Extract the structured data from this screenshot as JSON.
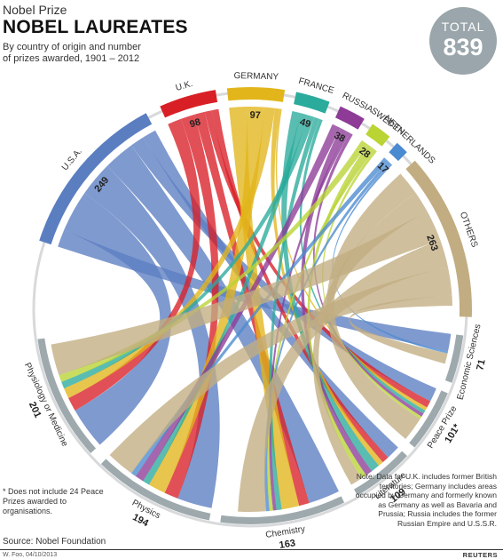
{
  "header": {
    "kicker": "Nobel Prize",
    "title": "NOBEL LAUREATES",
    "subtitle": "By country of origin and number of prizes awarded, 1901 – 2012"
  },
  "total": {
    "label": "TOTAL",
    "value": "839"
  },
  "colors": {
    "USA": "#5b7ec1",
    "UK": "#d81f26",
    "GERMANY": "#e2b51a",
    "FRANCE": "#2aab9b",
    "RUSSIA": "#8d3b97",
    "SWEDEN": "#b9d433",
    "NETHERLANDS": "#4a8ad0",
    "OTHERS": "#c2ad82",
    "category": "#9ea9ad",
    "ring": "#d7d9db"
  },
  "countries": [
    {
      "key": "USA",
      "label": "U.S.A.",
      "value": 249
    },
    {
      "key": "UK",
      "label": "U.K.",
      "value": 98
    },
    {
      "key": "GERMANY",
      "label": "GERMANY",
      "value": 97
    },
    {
      "key": "FRANCE",
      "label": "FRANCE",
      "value": 49
    },
    {
      "key": "RUSSIA",
      "label": "RUSSIA",
      "value": 38
    },
    {
      "key": "SWEDEN",
      "label": "SWEDEN",
      "value": 28
    },
    {
      "key": "NETHERLANDS",
      "label": "NETHERLANDS",
      "value": 17
    },
    {
      "key": "OTHERS",
      "label": "OTHERS",
      "value": 263
    }
  ],
  "prizes": [
    {
      "key": "econ",
      "label": "Economic Sciences",
      "value": "71"
    },
    {
      "key": "peace",
      "label": "Peace Prize",
      "value": "101*"
    },
    {
      "key": "lit",
      "label": "Literature",
      "value": "109"
    },
    {
      "key": "chem",
      "label": "Chemistry",
      "value": "163"
    },
    {
      "key": "phys",
      "label": "Physics",
      "value": "194"
    },
    {
      "key": "med",
      "label": "Physiology or Medicine",
      "value": "201"
    }
  ],
  "footnote": "* Does not include 24 Peace Prizes awarded to organisations.",
  "note": "Note: Data for U.K. includes former British territories; Germany includes areas occupied by Germany and formerly known as Germany as well as Bavaria and Prussia; Russia includes the former Russian Empire and U.S.S.R.",
  "source": "Source: Nobel Foundation",
  "credit": "W. Foo, 04/10/2013",
  "agency": "REUTERS"
}
